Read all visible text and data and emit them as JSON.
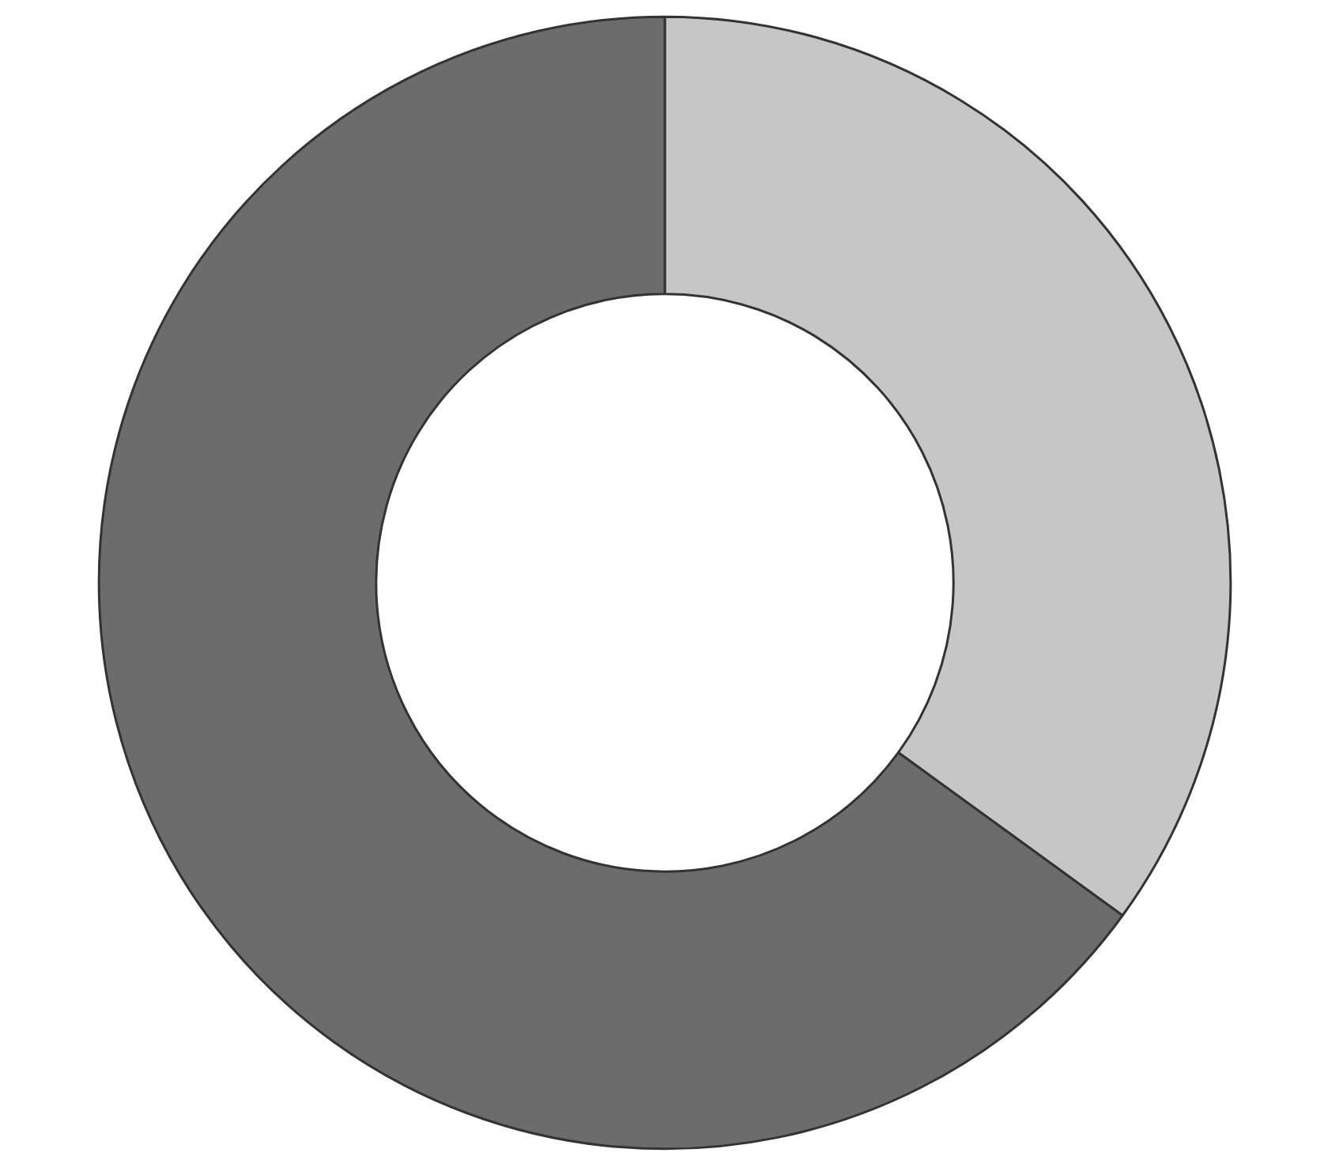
{
  "chart_data": {
    "type": "donut",
    "categories": [
      null,
      null
    ],
    "values": [
      35,
      65
    ],
    "colors": [
      "#c6c6c6",
      "#6c6c6c"
    ]
  }
}
